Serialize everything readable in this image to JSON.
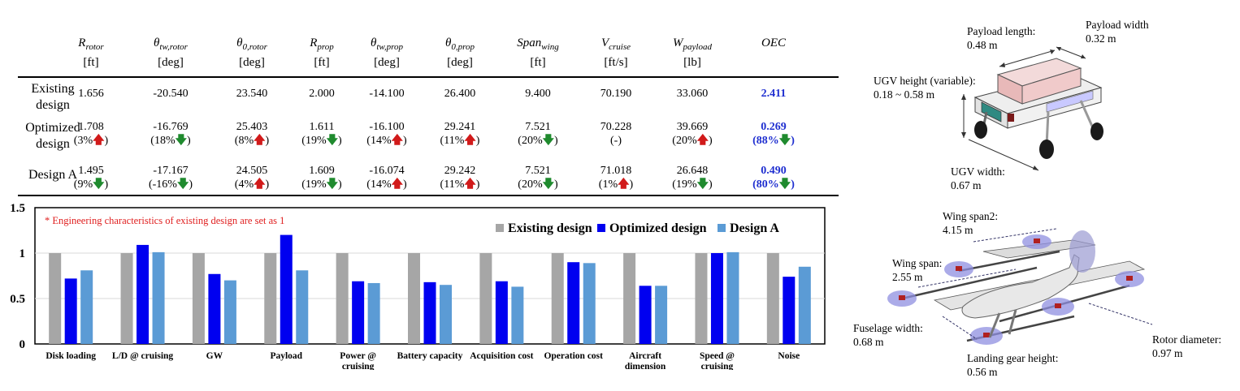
{
  "table": {
    "columns": [
      {
        "symbol": "R_rotor",
        "sym_main": "R",
        "sym_sub": "rotor",
        "unit": "[ft]"
      },
      {
        "symbol": "θ_tw,rotor",
        "sym_main": "θ",
        "sym_sub": "tw,rotor",
        "unit": "[deg]"
      },
      {
        "symbol": "θ_0,rotor",
        "sym_main": "θ",
        "sym_sub": "0,rotor",
        "unit": "[deg]"
      },
      {
        "symbol": "R_prop",
        "sym_main": "R",
        "sym_sub": "prop",
        "unit": "[ft]"
      },
      {
        "symbol": "θ_tw,prop",
        "sym_main": "θ",
        "sym_sub": "tw,prop",
        "unit": "[deg]"
      },
      {
        "symbol": "θ_0,prop",
        "sym_main": "θ",
        "sym_sub": "0,prop",
        "unit": "[deg]"
      },
      {
        "symbol": "Span_wing",
        "sym_main": "Span",
        "sym_sub": "wing",
        "unit": "[ft]"
      },
      {
        "symbol": "V_cruise",
        "sym_main": "V",
        "sym_sub": "cruise",
        "unit": "[ft/s]"
      },
      {
        "symbol": "W_payload",
        "sym_main": "W",
        "sym_sub": "payload",
        "unit": "[lb]"
      },
      {
        "symbol": "OEC",
        "sym_main": "OEC",
        "sym_sub": "",
        "unit": ""
      }
    ],
    "rows": [
      {
        "label_lines": [
          "Existing",
          "design"
        ],
        "values": [
          "1.656",
          "-20.540",
          "23.540",
          "2.000",
          "-14.100",
          "26.400",
          "9.400",
          "70.190",
          "33.060",
          "2.411"
        ],
        "changes": [
          null,
          null,
          null,
          null,
          null,
          null,
          null,
          null,
          null,
          null
        ]
      },
      {
        "label_lines": [
          "Optimized",
          "design"
        ],
        "values": [
          "1.708",
          "-16.769",
          "25.403",
          "1.611",
          "-16.100",
          "29.241",
          "7.521",
          "70.228",
          "39.669",
          "0.269"
        ],
        "changes": [
          {
            "text": "3%",
            "dir": "up"
          },
          {
            "text": "18%",
            "dir": "down"
          },
          {
            "text": "8%",
            "dir": "up"
          },
          {
            "text": "19%",
            "dir": "down"
          },
          {
            "text": "14%",
            "dir": "up"
          },
          {
            "text": "11%",
            "dir": "up"
          },
          {
            "text": "20%",
            "dir": "down"
          },
          {
            "text": "-",
            "dir": "none"
          },
          {
            "text": "20%",
            "dir": "up"
          },
          {
            "text": "88%",
            "dir": "down"
          }
        ]
      },
      {
        "label_lines": [
          "Design A"
        ],
        "values": [
          "1.495",
          "-17.167",
          "24.505",
          "1.609",
          "-16.074",
          "29.242",
          "7.521",
          "71.018",
          "26.648",
          "0.490"
        ],
        "changes": [
          {
            "text": "9%",
            "dir": "down"
          },
          {
            "text": "-16%",
            "dir": "down"
          },
          {
            "text": "4%",
            "dir": "up"
          },
          {
            "text": "19%",
            "dir": "down"
          },
          {
            "text": "14%",
            "dir": "up"
          },
          {
            "text": "11%",
            "dir": "up"
          },
          {
            "text": "20%",
            "dir": "down"
          },
          {
            "text": "1%",
            "dir": "up"
          },
          {
            "text": "19%",
            "dir": "down"
          },
          {
            "text": "80%",
            "dir": "down"
          }
        ]
      }
    ],
    "arrow_up": "🡅",
    "arrow_down": "🡇"
  },
  "chart_data": {
    "type": "bar",
    "title": "",
    "xlabel": "",
    "ylabel": "",
    "annotation": "* Engineering characteristics of existing design are set as 1",
    "categories": [
      "Disk loading",
      "L/D @ cruising",
      "GW",
      "Payload",
      "Power @ cruising",
      "Battery capacity",
      "Acquisition cost",
      "Operation cost",
      "Aircraft dimension",
      "Speed @ cruising",
      "Noise"
    ],
    "category_lines": [
      [
        "Disk loading"
      ],
      [
        "L/D @ cruising"
      ],
      [
        "GW"
      ],
      [
        "Payload"
      ],
      [
        "Power @",
        "cruising"
      ],
      [
        "Battery capacity"
      ],
      [
        "Acquisition cost"
      ],
      [
        "Operation cost"
      ],
      [
        "Aircraft",
        "dimension"
      ],
      [
        "Speed @",
        "cruising"
      ],
      [
        "Noise"
      ]
    ],
    "series": [
      {
        "name": "Existing design",
        "color": "#a6a6a6",
        "values": [
          1,
          1,
          1,
          1,
          1,
          1,
          1,
          1,
          1,
          1,
          1
        ]
      },
      {
        "name": "Optimized design",
        "color": "#0000f0",
        "values": [
          0.72,
          1.09,
          0.77,
          1.2,
          0.69,
          0.68,
          0.69,
          0.9,
          0.64,
          1.0,
          0.74
        ]
      },
      {
        "name": "Design A",
        "color": "#5b9bd5",
        "values": [
          0.81,
          1.01,
          0.7,
          0.81,
          0.67,
          0.65,
          0.63,
          0.89,
          0.64,
          1.01,
          0.85
        ]
      }
    ],
    "yticks": [
      "0",
      "0.5",
      "1",
      "1.5"
    ],
    "ylim": [
      0,
      1.5
    ],
    "grid": true,
    "legend": "top-right"
  },
  "ugv_annotations": {
    "payload_length": [
      "Payload length:",
      "0.48 m"
    ],
    "payload_width": [
      "Payload width",
      "0.32 m"
    ],
    "ugv_height": [
      "UGV height (variable):",
      "0.18 ~ 0.58 m"
    ],
    "ugv_width": [
      "UGV width:",
      "0.67 m"
    ]
  },
  "aircraft_annotations": {
    "wing_span2": [
      "Wing span2:",
      "4.15 m"
    ],
    "wing_span": [
      "Wing span:",
      "2.55 m"
    ],
    "fuselage_width": [
      "Fuselage width:",
      "0.68 m"
    ],
    "landing_gear_height": [
      "Landing gear height:",
      "0.56 m"
    ],
    "rotor_diameter": [
      "Rotor diameter:",
      "0.97 m"
    ]
  },
  "colors": {
    "oec_text": "#1f2fd0",
    "arrow_up": "#d11a1a",
    "arrow_down": "#1f8a2e",
    "annotation_red": "#e02020"
  }
}
